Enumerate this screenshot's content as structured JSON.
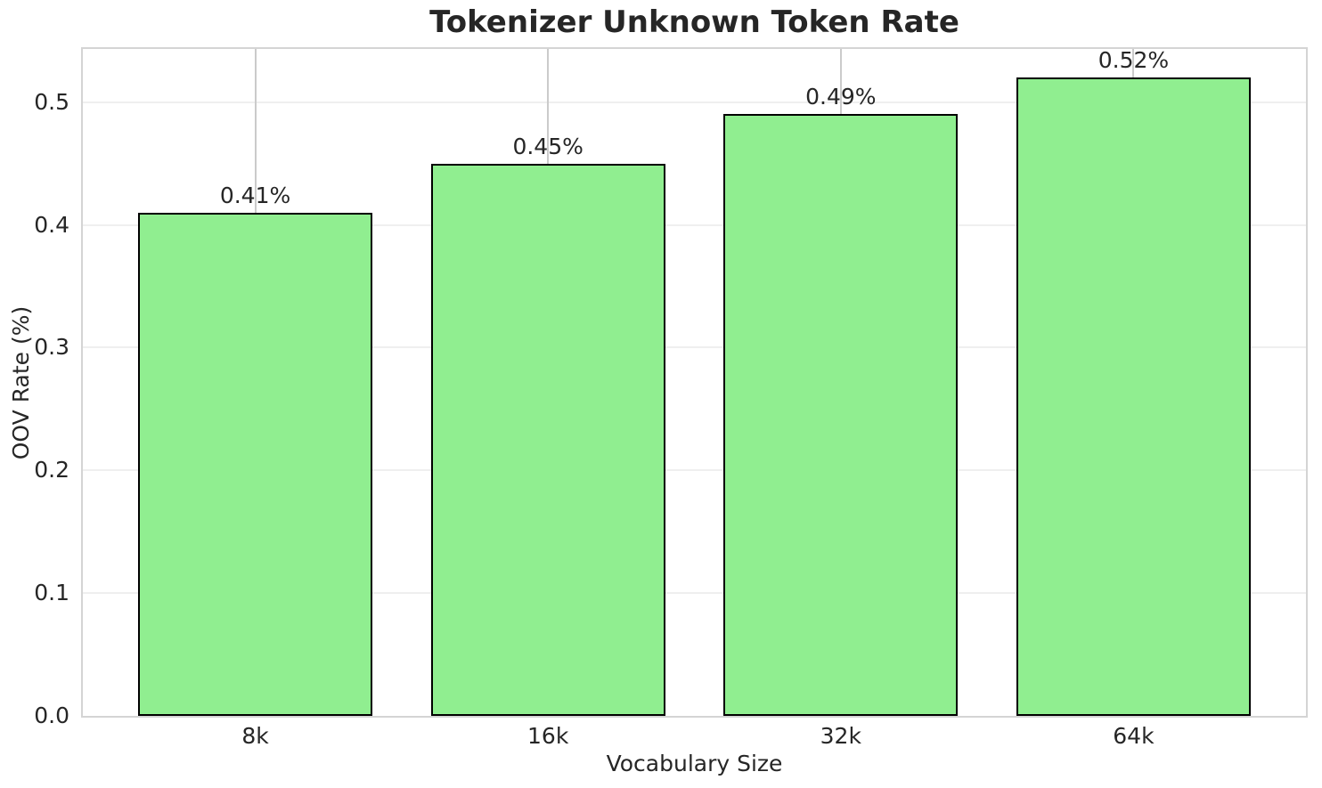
{
  "chart_data": {
    "type": "bar",
    "title": "Tokenizer Unknown Token Rate",
    "xlabel": "Vocabulary Size",
    "ylabel": "OOV Rate (%)",
    "categories": [
      "8k",
      "16k",
      "32k",
      "64k"
    ],
    "values": [
      0.41,
      0.45,
      0.49,
      0.52
    ],
    "bar_labels": [
      "0.41%",
      "0.45%",
      "0.49%",
      "0.52%"
    ],
    "yticks": [
      0.0,
      0.1,
      0.2,
      0.3,
      0.4,
      0.5
    ],
    "ytick_labels": [
      "0.0",
      "0.1",
      "0.2",
      "0.3",
      "0.4",
      "0.5"
    ],
    "ylim": [
      0,
      0.5433
    ],
    "grid": true,
    "legend": "none",
    "colors": {
      "bar_fill": "#90EE90",
      "bar_edge": "#000000",
      "grid_horizontal": "#EFEFEF",
      "grid_vertical": "#CBCBCB",
      "spine": "#D4D4D4",
      "text": "#262626",
      "background": "#FFFFFF"
    }
  }
}
